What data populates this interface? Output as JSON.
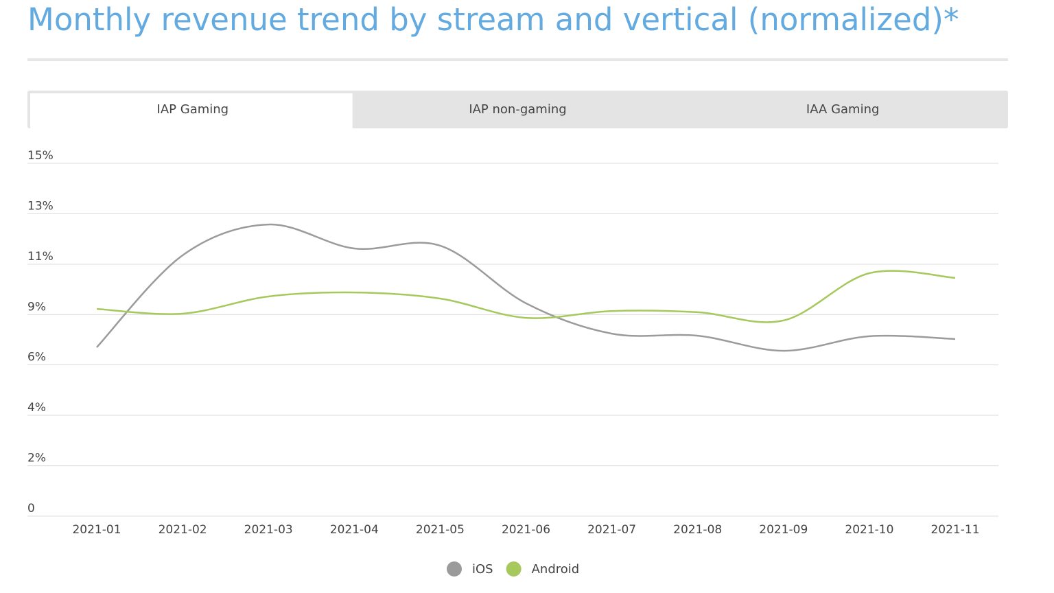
{
  "tabs": {
    "items": [
      "IAP Gaming",
      "IAP non-gaming",
      "IAA Gaming"
    ],
    "active": 0
  },
  "chart_data": {
    "type": "line",
    "title": "Monthly revenue trend by stream and vertical (normalized)*",
    "categories": [
      "2021-01",
      "2021-02",
      "2021-03",
      "2021-04",
      "2021-05",
      "2021-06",
      "2021-07",
      "2021-08",
      "2021-09",
      "2021-10",
      "2021-11"
    ],
    "series": [
      {
        "name": "iOS",
        "color": "#9b9b9b",
        "values": [
          7.18,
          11.09,
          12.4,
          11.38,
          11.5,
          9.05,
          7.76,
          7.67,
          7.03,
          7.65,
          7.53
        ]
      },
      {
        "name": "Android",
        "color": "#a6c85c",
        "values": [
          8.81,
          8.61,
          9.34,
          9.51,
          9.25,
          8.43,
          8.72,
          8.67,
          8.32,
          10.33,
          10.13
        ]
      }
    ],
    "ylim": [
      0,
      15
    ],
    "yticks": [
      0,
      {
        "value": 2.14,
        "label": "2%"
      },
      {
        "value": 4.29,
        "label": "4%"
      },
      {
        "value": 6.43,
        "label": "6%"
      },
      {
        "value": 8.57,
        "label": "9%"
      },
      {
        "value": 10.71,
        "label": "11%"
      },
      {
        "value": 12.86,
        "label": "13%"
      },
      {
        "value": 15,
        "label": "15%"
      }
    ],
    "grid": true,
    "legend": "bottom"
  }
}
